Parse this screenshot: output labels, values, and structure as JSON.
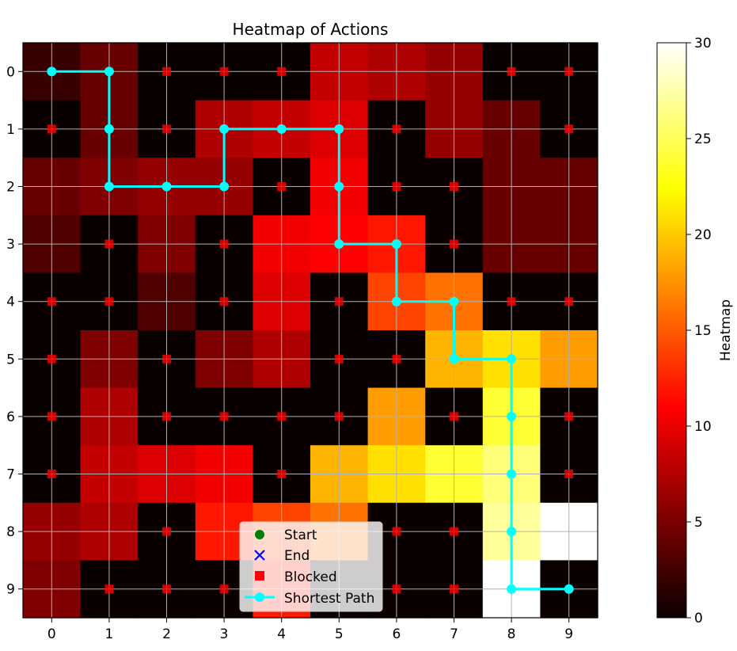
{
  "chart_data": {
    "type": "heatmap",
    "title": "Heatmap of Actions",
    "xlabel": "",
    "ylabel": "",
    "x_ticks": [
      0,
      1,
      2,
      3,
      4,
      5,
      6,
      7,
      8,
      9
    ],
    "y_ticks": [
      0,
      1,
      2,
      3,
      4,
      5,
      6,
      7,
      8,
      9
    ],
    "colormap": "hot",
    "colorbar": {
      "label": "Heatmap",
      "min": 0,
      "max": 30,
      "ticks": [
        0,
        5,
        10,
        15,
        20,
        25,
        30
      ]
    },
    "grid": true,
    "values": [
      [
        2,
        4,
        0,
        0,
        0,
        8,
        7,
        6,
        0,
        0
      ],
      [
        0,
        4,
        0,
        7,
        8,
        9,
        0,
        6,
        4,
        0
      ],
      [
        4,
        5,
        6,
        6,
        0,
        10,
        0,
        0,
        4,
        4
      ],
      [
        3,
        0,
        5,
        0,
        10,
        11,
        12,
        0,
        4,
        4
      ],
      [
        0,
        0,
        3,
        0,
        9,
        0,
        14,
        16,
        0,
        0
      ],
      [
        0,
        5,
        0,
        5,
        7,
        0,
        0,
        19,
        21,
        18
      ],
      [
        0,
        7,
        0,
        0,
        0,
        0,
        18,
        0,
        24,
        0
      ],
      [
        0,
        8,
        9,
        10,
        0,
        19,
        21,
        24,
        26,
        0
      ],
      [
        6,
        7,
        0,
        12,
        14,
        16,
        0,
        0,
        27,
        30
      ],
      [
        5,
        0,
        0,
        0,
        12,
        0,
        0,
        0,
        30,
        0
      ]
    ],
    "blocked": [
      [
        0,
        2
      ],
      [
        0,
        3
      ],
      [
        0,
        4
      ],
      [
        0,
        8
      ],
      [
        0,
        9
      ],
      [
        1,
        0
      ],
      [
        1,
        2
      ],
      [
        1,
        6
      ],
      [
        1,
        9
      ],
      [
        2,
        4
      ],
      [
        2,
        6
      ],
      [
        2,
        7
      ],
      [
        3,
        1
      ],
      [
        3,
        3
      ],
      [
        3,
        7
      ],
      [
        4,
        0
      ],
      [
        4,
        1
      ],
      [
        4,
        3
      ],
      [
        4,
        5
      ],
      [
        4,
        8
      ],
      [
        4,
        9
      ],
      [
        5,
        0
      ],
      [
        5,
        2
      ],
      [
        5,
        5
      ],
      [
        5,
        6
      ],
      [
        6,
        0
      ],
      [
        6,
        2
      ],
      [
        6,
        3
      ],
      [
        6,
        4
      ],
      [
        6,
        5
      ],
      [
        6,
        7
      ],
      [
        6,
        9
      ],
      [
        7,
        0
      ],
      [
        7,
        4
      ],
      [
        7,
        9
      ],
      [
        8,
        2
      ],
      [
        8,
        6
      ],
      [
        8,
        7
      ],
      [
        9,
        1
      ],
      [
        9,
        2
      ],
      [
        9,
        3
      ],
      [
        9,
        6
      ],
      [
        9,
        7
      ]
    ],
    "shortest_path": [
      [
        0,
        0
      ],
      [
        0,
        1
      ],
      [
        1,
        1
      ],
      [
        2,
        1
      ],
      [
        2,
        2
      ],
      [
        2,
        3
      ],
      [
        1,
        3
      ],
      [
        1,
        4
      ],
      [
        1,
        5
      ],
      [
        2,
        5
      ],
      [
        3,
        5
      ],
      [
        3,
        6
      ],
      [
        4,
        6
      ],
      [
        4,
        7
      ],
      [
        5,
        7
      ],
      [
        5,
        8
      ],
      [
        6,
        8
      ],
      [
        7,
        8
      ],
      [
        8,
        8
      ],
      [
        9,
        8
      ],
      [
        9,
        9
      ]
    ],
    "colors": {
      "path": "#00ffff",
      "blocked": "#ff0000",
      "start": "#008000",
      "end": "#0000ff",
      "grid": "#b0b0b0"
    },
    "legend": {
      "placement": "lower-center",
      "entries": [
        {
          "label": "Start",
          "marker": "circle"
        },
        {
          "label": "End",
          "marker": "x"
        },
        {
          "label": "Blocked",
          "marker": "square"
        },
        {
          "label": "Shortest Path",
          "marker": "line-circle"
        }
      ]
    }
  }
}
